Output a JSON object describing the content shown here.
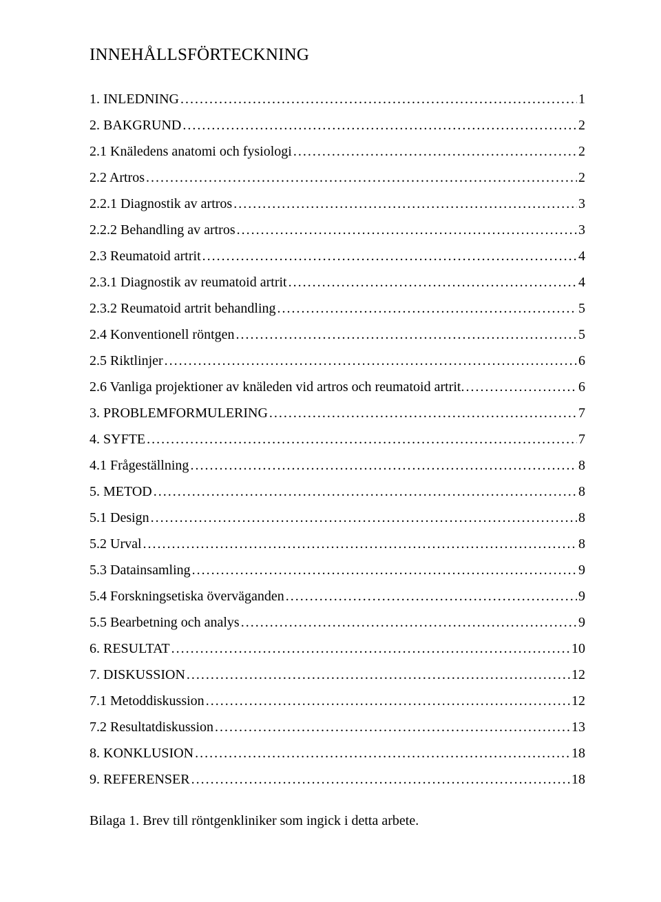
{
  "title": "INNEHÅLLSFÖRTECKNING",
  "font": {
    "family": "Times New Roman",
    "body_size_pt": 15,
    "title_size_pt": 19
  },
  "colors": {
    "text": "#000000",
    "background": "#ffffff"
  },
  "entries": [
    {
      "label": "1. INLEDNING",
      "page": "1",
      "level": 0
    },
    {
      "label": "2. BAKGRUND",
      "page": "2",
      "level": 0
    },
    {
      "label": "2.1 Knäledens anatomi och fysiologi",
      "page": "2",
      "level": 1
    },
    {
      "label": "2.2 Artros",
      "page": "2",
      "level": 1
    },
    {
      "label": "2.2.1 Diagnostik av artros",
      "page": "3",
      "level": 2
    },
    {
      "label": "2.2.2 Behandling av artros",
      "page": "3",
      "level": 2
    },
    {
      "label": "2.3 Reumatoid artrit",
      "page": "4",
      "level": 1
    },
    {
      "label": "2.3.1 Diagnostik av reumatoid artrit",
      "page": "4",
      "level": 2
    },
    {
      "label": "2.3.2 Reumatoid artrit behandling",
      "page": "5",
      "level": 2
    },
    {
      "label": "2.4 Konventionell röntgen",
      "page": "5",
      "level": 1
    },
    {
      "label": "2.5 Riktlinjer",
      "page": "6",
      "level": 1
    },
    {
      "label": "2.6 Vanliga projektioner av knäleden vid artros och reumatoid artrit.",
      "page": "6",
      "level": 1
    },
    {
      "label": "3. PROBLEMFORMULERING",
      "page": "7",
      "level": 0
    },
    {
      "label": "4. SYFTE",
      "page": "7",
      "level": 0
    },
    {
      "label": "4.1 Frågeställning",
      "page": "8",
      "level": 1
    },
    {
      "label": "5. METOD",
      "page": "8",
      "level": 0
    },
    {
      "label": "5.1 Design",
      "page": "8",
      "level": 1
    },
    {
      "label": "5.2 Urval",
      "page": "8",
      "level": 1
    },
    {
      "label": "5.3 Datainsamling",
      "page": "9",
      "level": 1
    },
    {
      "label": "5.4 Forskningsetiska överväganden",
      "page": "9",
      "level": 1
    },
    {
      "label": "5.5  Bearbetning och analys",
      "page": "9",
      "level": 1
    },
    {
      "label": "6. RESULTAT",
      "page": "10",
      "level": 0
    },
    {
      "label": "7. DISKUSSION",
      "page": "12",
      "level": 0
    },
    {
      "label": "7.1 Metoddiskussion",
      "page": "12",
      "level": 1
    },
    {
      "label": "7.2 Resultatdiskussion",
      "page": "13",
      "level": 1
    },
    {
      "label": "8. KONKLUSION",
      "page": "18",
      "level": 0
    },
    {
      "label": "9. REFERENSER",
      "page": "18",
      "level": 0
    }
  ],
  "appendix": "Bilaga 1. Brev till röntgenkliniker som ingick i detta arbete."
}
